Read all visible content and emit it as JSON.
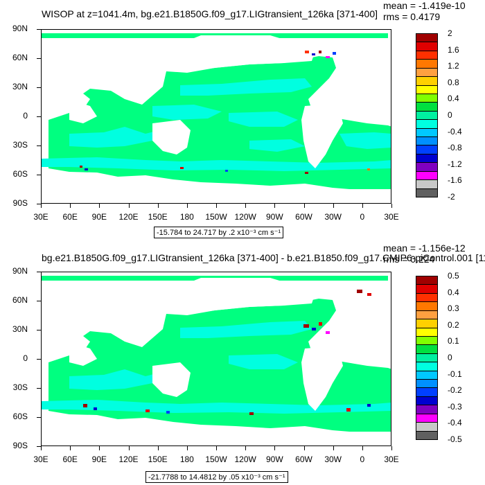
{
  "panels": [
    {
      "id": "top",
      "title": "WISOP at z=1041.4m, bg.e21.B1850G.f09_g17.LIGtransient_126ka [371-400]",
      "mean": "mean = -1.419e-10",
      "rms": "rms = 0.4179",
      "caption": "-15.784 to 24.717 by .2 x10⁻³ cm s⁻¹",
      "colorbar_labels": [
        "2",
        "1.6",
        "1.2",
        "0.8",
        "0.4",
        "0",
        "-0.4",
        "-0.8",
        "-1.2",
        "-1.6",
        "-2"
      ],
      "colorbar_colors": [
        "#a00000",
        "#e00000",
        "#ff3000",
        "#ff7800",
        "#ffa040",
        "#ffd000",
        "#ffff00",
        "#80ff00",
        "#00e040",
        "#00f0a0",
        "#00ffe0",
        "#00c8ff",
        "#0090ff",
        "#0040ff",
        "#0000d0",
        "#8000c0",
        "#ff00ff",
        "#c8c8c8",
        "#606060"
      ]
    },
    {
      "id": "bottom",
      "title": "bg.e21.B1850G.f09_g17.LIGtransient_126ka [371-400] - b.e21.B1850.f09_g17.CMIP6-piControl.001 [11",
      "mean": "mean = -1.156e-12",
      "rms": "rms = 0.224",
      "caption": "-21.7788 to 14.4812 by .05 x10⁻³ cm s⁻¹",
      "colorbar_labels": [
        "0.5",
        "0.4",
        "0.3",
        "0.2",
        "0.1",
        "0",
        "-0.1",
        "-0.2",
        "-0.3",
        "-0.4",
        "-0.5"
      ],
      "colorbar_colors": [
        "#a00000",
        "#e00000",
        "#ff3000",
        "#ff7800",
        "#ffa040",
        "#ffd000",
        "#ffff00",
        "#80ff00",
        "#00e040",
        "#00f0a0",
        "#00ffe0",
        "#00c8ff",
        "#0090ff",
        "#0040ff",
        "#0000d0",
        "#8000c0",
        "#ff00ff",
        "#c8c8c8",
        "#606060"
      ]
    }
  ],
  "axes": {
    "lat_labels": [
      "90N",
      "60N",
      "30N",
      "0",
      "30S",
      "60S",
      "90S"
    ],
    "lon_labels": [
      "30E",
      "60E",
      "90E",
      "120E",
      "150E",
      "180",
      "150W",
      "120W",
      "90W",
      "60W",
      "30W",
      "0",
      "30E"
    ]
  },
  "map_style": {
    "ocean_base": "#00ff80",
    "ocean_alt": "#00ffe0",
    "land": "#ffffff"
  }
}
